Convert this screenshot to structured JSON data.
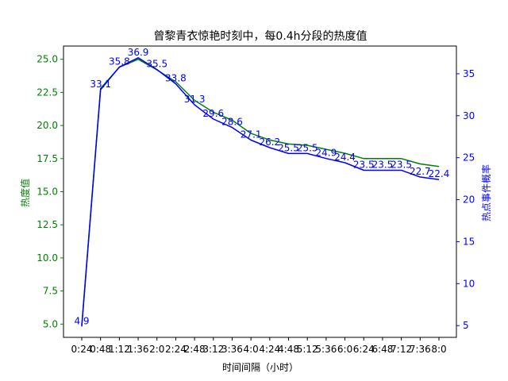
{
  "chart_data": {
    "type": "line",
    "title": "曾黎青衣惊艳时刻中，每0.4h分段的热度值",
    "xlabel": "时间间隔（小时）",
    "ylabel_left": "热度值",
    "ylabel_right": "热点事件概率",
    "x_categories": [
      "0:24",
      "0:48",
      "1:12",
      "1:36",
      "2:0",
      "2:24",
      "2:48",
      "3:12",
      "3:36",
      "4:0",
      "4:24",
      "4:48",
      "5:12",
      "5:36",
      "6:0",
      "6:24",
      "6:48",
      "7:12",
      "7:36",
      "8:0"
    ],
    "left_axis": {
      "ylim": [
        4.0,
        26.0
      ],
      "ticks": [
        5.0,
        7.5,
        10.0,
        12.5,
        15.0,
        17.5,
        20.0,
        22.5,
        25.0
      ],
      "tick_labels": [
        "5.0",
        "7.5",
        "10.0",
        "12.5",
        "15.0",
        "17.5",
        "20.0",
        "22.5",
        "25.0"
      ]
    },
    "right_axis": {
      "ylim": [
        3.6,
        38.3
      ],
      "ticks": [
        5,
        10,
        15,
        20,
        25,
        30,
        35
      ],
      "tick_labels": [
        "5",
        "10",
        "15",
        "20",
        "25",
        "30",
        "35"
      ]
    },
    "series": [
      {
        "axis": "left",
        "color": "#008000",
        "values": [
          4.9,
          22.8,
          24.4,
          25.0,
          24.2,
          23.3,
          21.9,
          21.0,
          20.4,
          19.4,
          18.9,
          18.6,
          18.5,
          18.2,
          17.9,
          17.5,
          17.5,
          17.5,
          17.1,
          16.9
        ]
      },
      {
        "axis": "right",
        "color": "#0000ff",
        "values": [
          4.9,
          33.1,
          35.8,
          36.9,
          35.5,
          33.8,
          31.3,
          29.6,
          28.6,
          27.1,
          26.2,
          25.5,
          25.5,
          24.9,
          24.4,
          23.5,
          23.5,
          23.5,
          22.7,
          22.4
        ],
        "data_labels": [
          "4.9",
          "33.1",
          "35.8",
          "36.9",
          "35.5",
          "33.8",
          "31.3",
          "29.6",
          "28.6",
          "27.1",
          "26.2",
          "25.5",
          "25.5",
          "24.9",
          "24.4",
          "23.5",
          "23.5",
          "23.5",
          "22.7",
          "22.4"
        ]
      }
    ],
    "colors": {
      "left_axis": "#008000",
      "right_axis": "#0000ff",
      "text": "#000000"
    },
    "grid": false,
    "legend": "none"
  }
}
